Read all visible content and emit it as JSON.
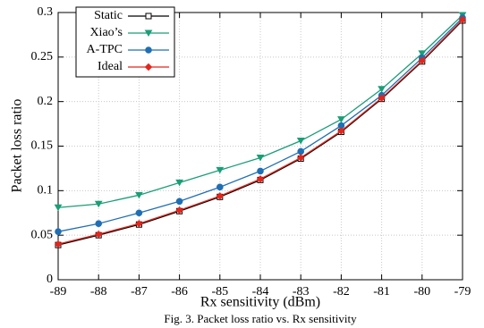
{
  "chart_data": {
    "type": "line",
    "xlabel": "Rx sensitivity (dBm)",
    "ylabel": "Packet loss ratio",
    "caption": "Fig. 3. Packet loss ratio vs. Rx sensitivity",
    "x": [
      -89,
      -88,
      -87,
      -86,
      -85,
      -84,
      -83,
      -82,
      -81,
      -80,
      -79
    ],
    "xlim": [
      -89,
      -79
    ],
    "xticks": [
      -89,
      -88,
      -87,
      -86,
      -85,
      -84,
      -83,
      -82,
      -81,
      -80,
      -79
    ],
    "ylim": [
      0,
      0.3
    ],
    "yticks": [
      0,
      0.05,
      0.1,
      0.15,
      0.2,
      0.25,
      0.3
    ],
    "grid": true,
    "legend": "upper-left",
    "series": [
      {
        "name": "Static",
        "color": "#000000",
        "marker": "square",
        "values": [
          0.039,
          0.05,
          0.062,
          0.077,
          0.093,
          0.112,
          0.136,
          0.166,
          0.203,
          0.245,
          0.291
        ]
      },
      {
        "name": "Xiao’s",
        "color": "#1a9e77",
        "marker": "triangle-down",
        "values": [
          0.081,
          0.085,
          0.095,
          0.109,
          0.123,
          0.137,
          0.156,
          0.18,
          0.214,
          0.254,
          0.297
        ]
      },
      {
        "name": "A-TPC",
        "color": "#1f6fb4",
        "marker": "circle",
        "values": [
          0.054,
          0.063,
          0.075,
          0.088,
          0.104,
          0.122,
          0.144,
          0.173,
          0.207,
          0.249,
          0.294
        ]
      },
      {
        "name": "Ideal",
        "color": "#e3261c",
        "marker": "diamond",
        "values": [
          0.04,
          0.051,
          0.063,
          0.078,
          0.094,
          0.113,
          0.137,
          0.167,
          0.204,
          0.246,
          0.292
        ]
      }
    ]
  }
}
